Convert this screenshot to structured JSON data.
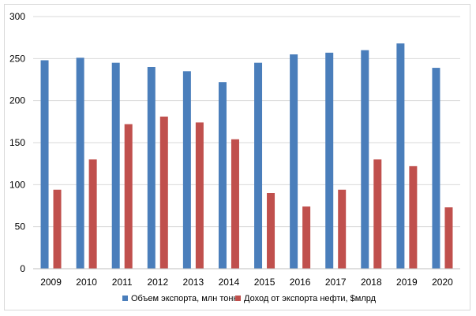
{
  "chart_data": {
    "type": "bar",
    "title": "",
    "xlabel": "",
    "ylabel": "",
    "categories": [
      "2009",
      "2010",
      "2011",
      "2012",
      "2013",
      "2014",
      "2015",
      "2016",
      "2017",
      "2018",
      "2019",
      "2020"
    ],
    "series": [
      {
        "name": "Объем экспорта, млн тонн",
        "color": "#4a7ebb",
        "values": [
          248,
          251,
          245,
          240,
          235,
          222,
          245,
          255,
          257,
          260,
          268,
          239
        ]
      },
      {
        "name": "Доход от экспорта нефти, $млрд",
        "color": "#c0504d",
        "values": [
          94,
          130,
          172,
          181,
          174,
          154,
          90,
          74,
          94,
          130,
          122,
          73
        ]
      }
    ],
    "ylim": [
      0,
      300
    ],
    "yticks": [
      "0",
      "50",
      "100",
      "150",
      "200",
      "250",
      "300"
    ],
    "grid": true,
    "legend_position": "bottom"
  }
}
